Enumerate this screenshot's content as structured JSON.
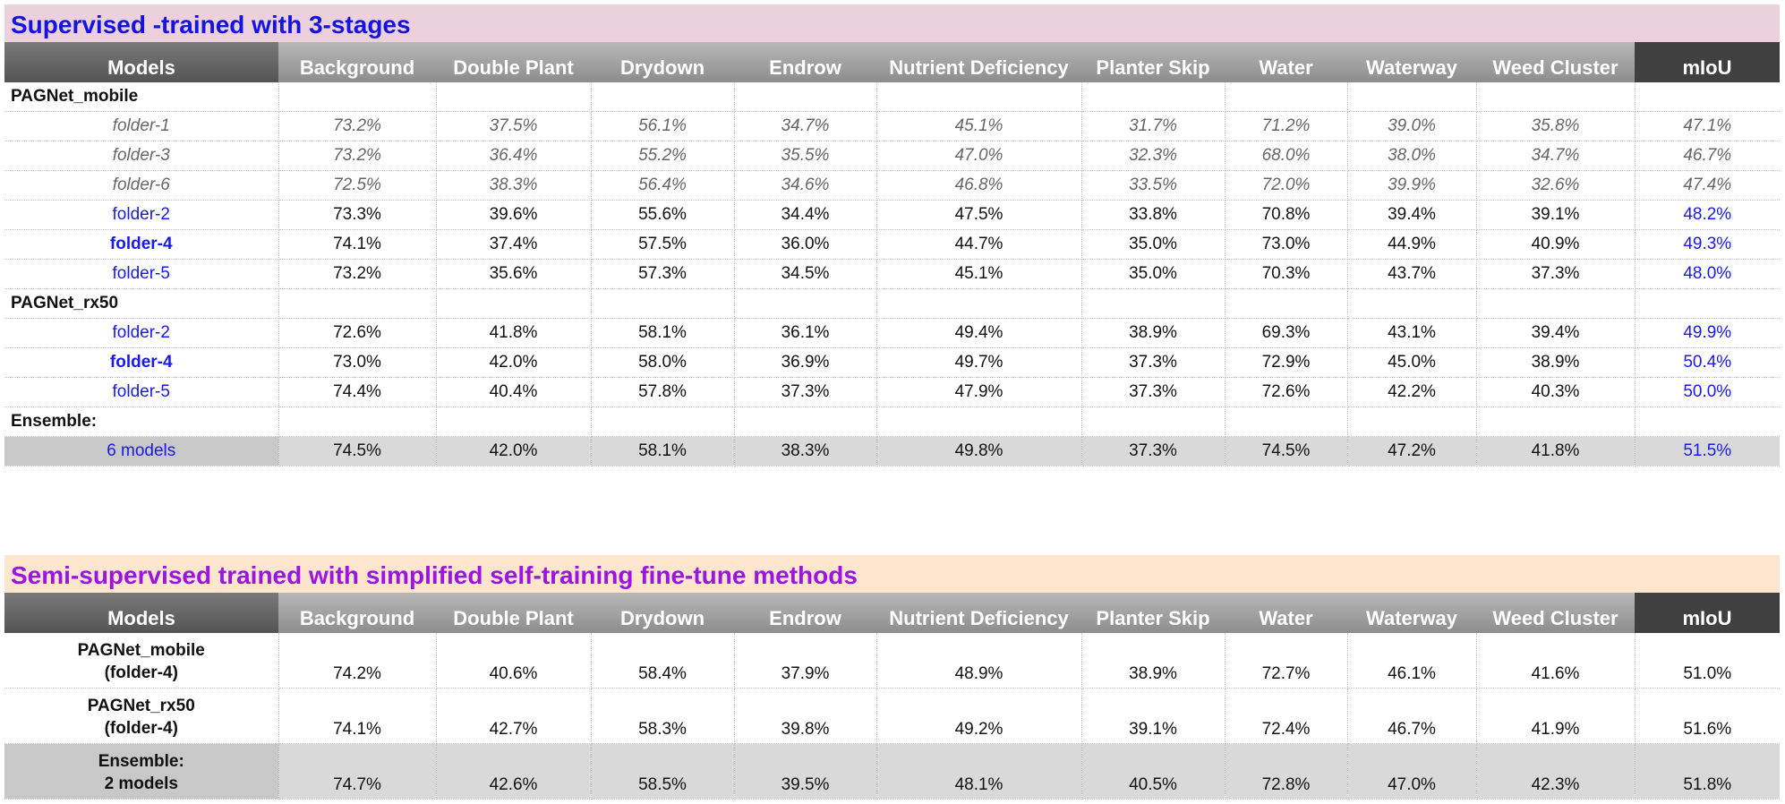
{
  "columns": [
    "Models",
    "Background",
    "Double Plant",
    "Drydown",
    "Endrow",
    "Nutrient Deficiency",
    "Planter Skip",
    "Water",
    "Waterway",
    "Weed Cluster",
    "mIoU"
  ],
  "colors": {
    "banner1_bg": "#ecd0dc",
    "banner1_fg": "#1414e0",
    "banner2_bg": "#fde5ce",
    "banner2_fg": "#9b14e0",
    "link_blue": "#1a1ae6"
  },
  "section1": {
    "title": "Supervised -trained with 3-stages",
    "groups": [
      {
        "label": "PAGNet_mobile",
        "rows": [
          {
            "name": "folder-1",
            "values": [
              "73.2%",
              "37.5%",
              "56.1%",
              "34.7%",
              "45.1%",
              "31.7%",
              "71.2%",
              "39.0%",
              "35.8%",
              "47.1%"
            ]
          },
          {
            "name": "folder-3",
            "values": [
              "73.2%",
              "36.4%",
              "55.2%",
              "35.5%",
              "47.0%",
              "32.3%",
              "68.0%",
              "38.0%",
              "34.7%",
              "46.7%"
            ]
          },
          {
            "name": "folder-6",
            "values": [
              "72.5%",
              "38.3%",
              "56.4%",
              "34.6%",
              "46.8%",
              "33.5%",
              "72.0%",
              "39.9%",
              "32.6%",
              "47.4%"
            ]
          },
          {
            "name": "folder-2",
            "values": [
              "73.3%",
              "39.6%",
              "55.6%",
              "34.4%",
              "47.5%",
              "33.8%",
              "70.8%",
              "39.4%",
              "39.1%",
              "48.2%"
            ]
          },
          {
            "name": "folder-4",
            "values": [
              "74.1%",
              "37.4%",
              "57.5%",
              "36.0%",
              "44.7%",
              "35.0%",
              "73.0%",
              "44.9%",
              "40.9%",
              "49.3%"
            ]
          },
          {
            "name": "folder-5",
            "values": [
              "73.2%",
              "35.6%",
              "57.3%",
              "34.5%",
              "45.1%",
              "35.0%",
              "70.3%",
              "43.7%",
              "37.3%",
              "48.0%"
            ]
          }
        ]
      },
      {
        "label": "PAGNet_rx50",
        "rows": [
          {
            "name": "folder-2",
            "values": [
              "72.6%",
              "41.8%",
              "58.1%",
              "36.1%",
              "49.4%",
              "38.9%",
              "69.3%",
              "43.1%",
              "39.4%",
              "49.9%"
            ]
          },
          {
            "name": "folder-4",
            "values": [
              "73.0%",
              "42.0%",
              "58.0%",
              "36.9%",
              "49.7%",
              "37.3%",
              "72.9%",
              "45.0%",
              "38.9%",
              "50.4%"
            ]
          },
          {
            "name": "folder-5",
            "values": [
              "74.4%",
              "40.4%",
              "57.8%",
              "37.3%",
              "47.9%",
              "37.3%",
              "72.6%",
              "42.2%",
              "40.3%",
              "50.0%"
            ]
          }
        ]
      },
      {
        "label": "Ensemble:",
        "rows": [
          {
            "name": "6 models",
            "values": [
              "74.5%",
              "42.0%",
              "58.1%",
              "38.3%",
              "49.8%",
              "37.3%",
              "74.5%",
              "47.2%",
              "41.8%",
              "51.5%"
            ]
          }
        ]
      }
    ]
  },
  "section2": {
    "title": "Semi-supervised trained with simplified self-training fine-tune methods",
    "rows": [
      {
        "line1": "PAGNet_mobile",
        "line2": "(folder-4)",
        "values": [
          "74.2%",
          "40.6%",
          "58.4%",
          "37.9%",
          "48.9%",
          "38.9%",
          "72.7%",
          "46.1%",
          "41.6%",
          "51.0%"
        ]
      },
      {
        "line1": "PAGNet_rx50",
        "line2": "(folder-4)",
        "values": [
          "74.1%",
          "42.7%",
          "58.3%",
          "39.8%",
          "49.2%",
          "39.1%",
          "72.4%",
          "46.7%",
          "41.9%",
          "51.6%"
        ]
      },
      {
        "line1": "Ensemble:",
        "line2": "2 models",
        "values": [
          "74.7%",
          "42.6%",
          "58.5%",
          "39.5%",
          "48.1%",
          "40.5%",
          "72.8%",
          "47.0%",
          "42.3%",
          "51.8%"
        ]
      }
    ]
  }
}
